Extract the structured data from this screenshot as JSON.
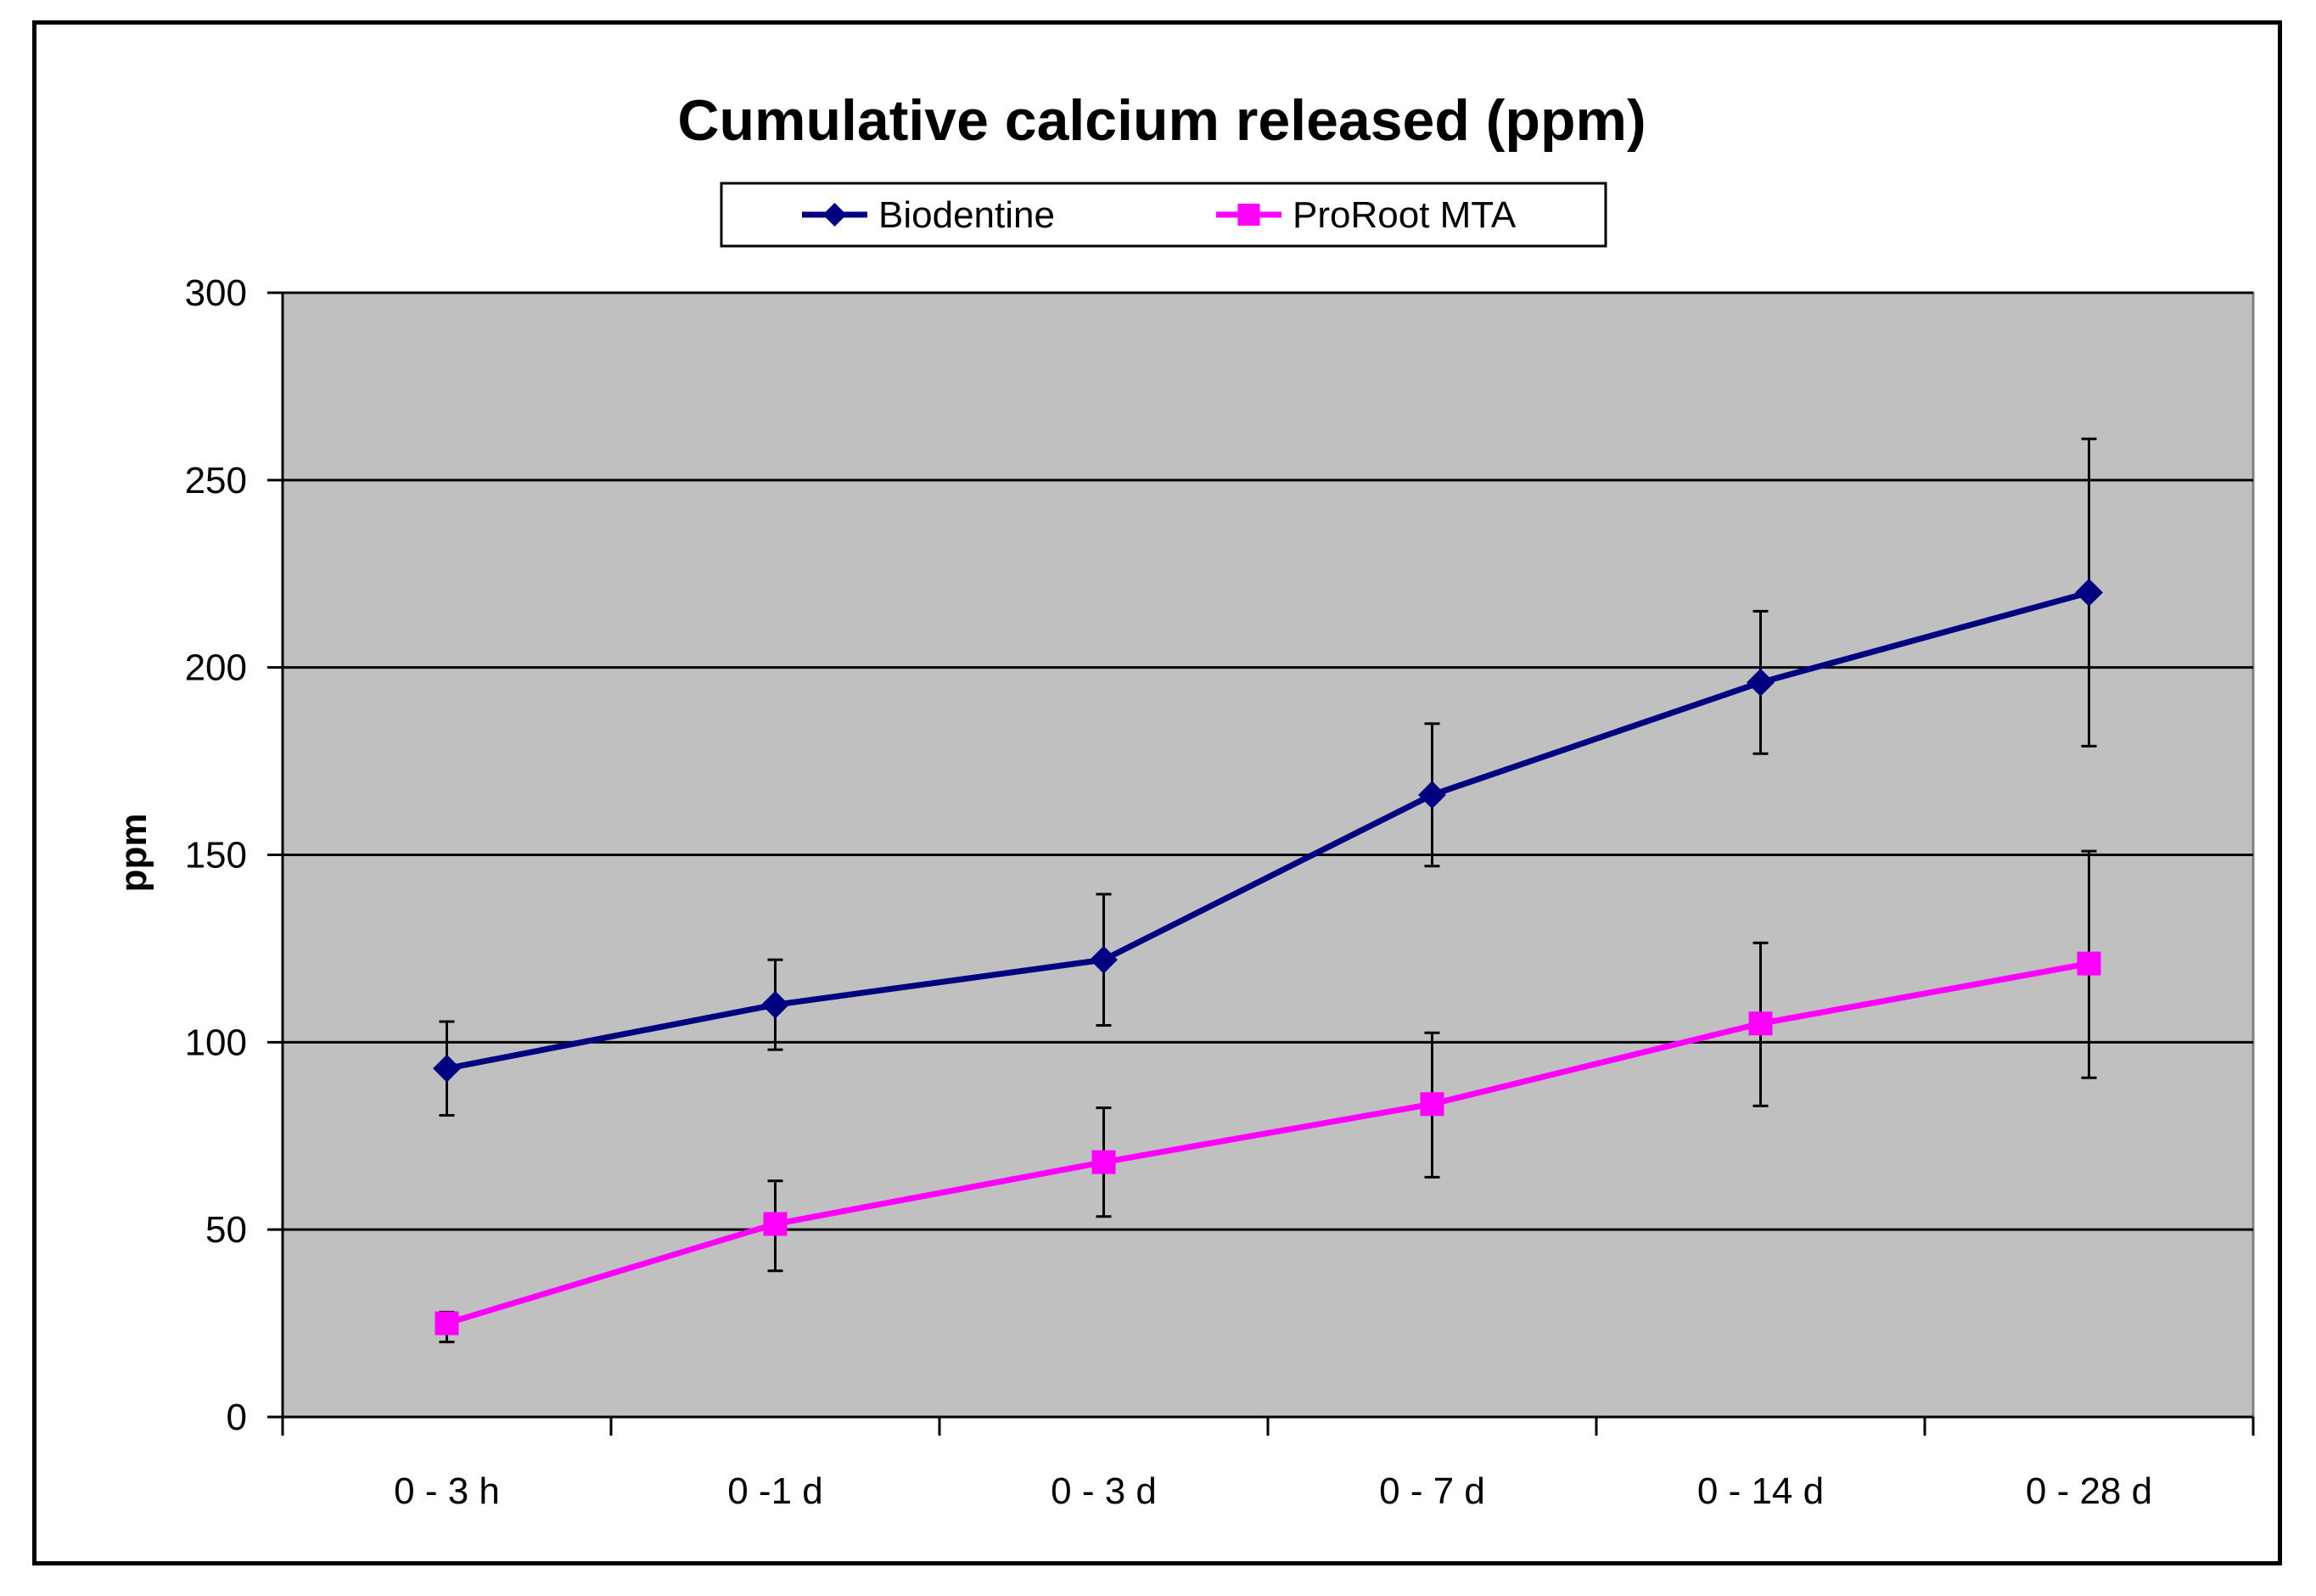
{
  "chart_data": {
    "type": "line",
    "title": "Cumulative calcium released (ppm)",
    "xlabel": "",
    "ylabel": "ppm",
    "categories": [
      "0 - 3 h",
      "0 -1 d",
      "0 - 3 d",
      "0 - 7 d",
      "0 - 14 d",
      "0 - 28 d"
    ],
    "ylim": [
      0,
      300
    ],
    "yticks": [
      0,
      50,
      100,
      150,
      200,
      250,
      300
    ],
    "grid": true,
    "legend_position": "top-center",
    "plot_background": "#c0c0c0",
    "series": [
      {
        "name": "Biodentine",
        "color": "#000080",
        "marker": "diamond",
        "values": [
          93,
          110,
          122,
          166,
          196,
          220
        ],
        "error_plus": [
          12.5,
          12,
          17.5,
          19,
          19,
          41
        ],
        "error_minus": [
          12.5,
          12,
          17.5,
          19,
          19,
          41
        ]
      },
      {
        "name": "ProRoot MTA",
        "color": "#ff00ff",
        "marker": "square",
        "values": [
          25,
          51.5,
          68,
          83.5,
          105,
          121
        ],
        "error_plus": [
          3,
          11.5,
          14.5,
          19,
          21.5,
          30
        ],
        "error_minus": [
          5,
          12.5,
          14.5,
          19.5,
          22,
          30.5
        ]
      }
    ]
  }
}
